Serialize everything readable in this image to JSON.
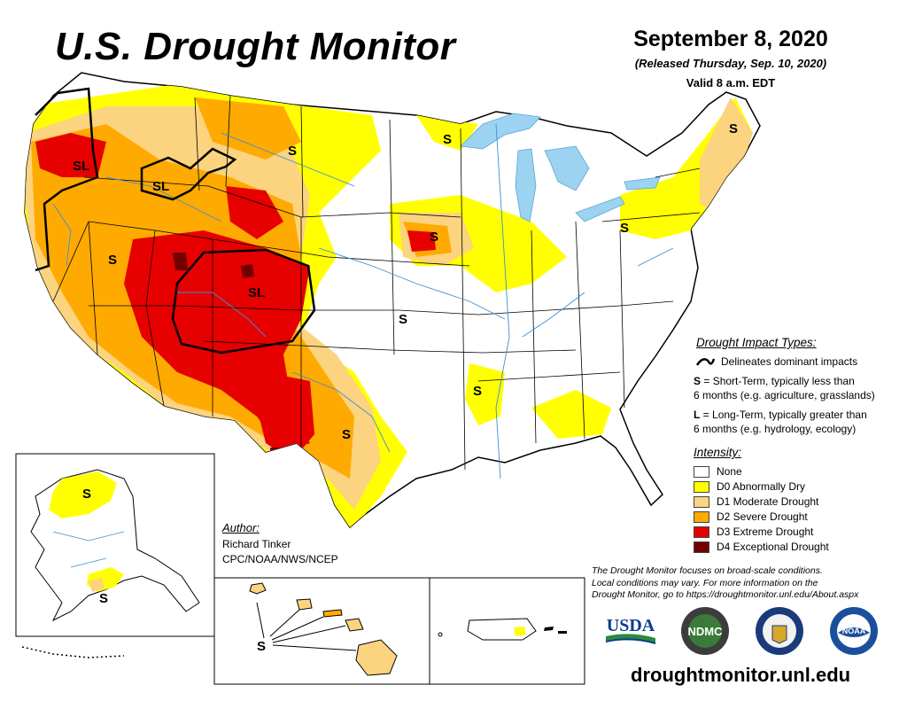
{
  "header": {
    "title": "U.S. Drought Monitor",
    "date": "September 8, 2020",
    "released": "(Released Thursday, Sep. 10, 2020)",
    "valid": "Valid 8 a.m. EDT"
  },
  "impact_types": {
    "heading": "Drought Impact Types:",
    "line_desc": "Delineates dominant impacts",
    "s_key": "S",
    "s_desc_1": " = Short-Term, typically less than",
    "s_desc_2": "6 months (e.g. agriculture, grasslands)",
    "l_key": "L",
    "l_desc_1": " = Long-Term, typically greater than",
    "l_desc_2": "6 months (e.g. hydrology, ecology)"
  },
  "intensity": {
    "heading": "Intensity:",
    "items": [
      {
        "label": "None",
        "color": "#ffffff"
      },
      {
        "label": "D0 Abnormally Dry",
        "color": "#ffff00"
      },
      {
        "label": "D1 Moderate Drought",
        "color": "#fcd37f"
      },
      {
        "label": "D2 Severe Drought",
        "color": "#ffaa00"
      },
      {
        "label": "D3 Extreme Drought",
        "color": "#e60000"
      },
      {
        "label": "D4 Exceptional Drought",
        "color": "#730000"
      }
    ]
  },
  "author": {
    "heading": "Author:",
    "name": "Richard Tinker",
    "org": "CPC/NOAA/NWS/NCEP"
  },
  "note": {
    "line1": "The Drought Monitor focuses on broad-scale conditions.",
    "line2": "Local conditions may vary. For more information on the",
    "line3": "Drought Monitor, go to https://droughtmonitor.unl.edu/About.aspx"
  },
  "map_labels": {
    "pnw": "SL",
    "idaho": "SL",
    "montana": "S",
    "minn": "S",
    "maine": "S",
    "nevada": "S",
    "colorado": "SL",
    "iowa": "S",
    "pa": "S",
    "kansas": "S",
    "texas": "S",
    "miss": "S",
    "alaska_n": "S",
    "alaska_s": "S",
    "hawaii": "S"
  },
  "logos": {
    "usda": "USDA",
    "ndmc": "NDMC",
    "noaa": "NOAA"
  },
  "site": "droughtmonitor.unl.edu",
  "colors": {
    "none": "#ffffff",
    "d0": "#ffff00",
    "d1": "#fcd37f",
    "d2": "#ffaa00",
    "d3": "#e60000",
    "d4": "#730000",
    "water": "#9bd3f0",
    "rivers": "#3a8fd8"
  }
}
